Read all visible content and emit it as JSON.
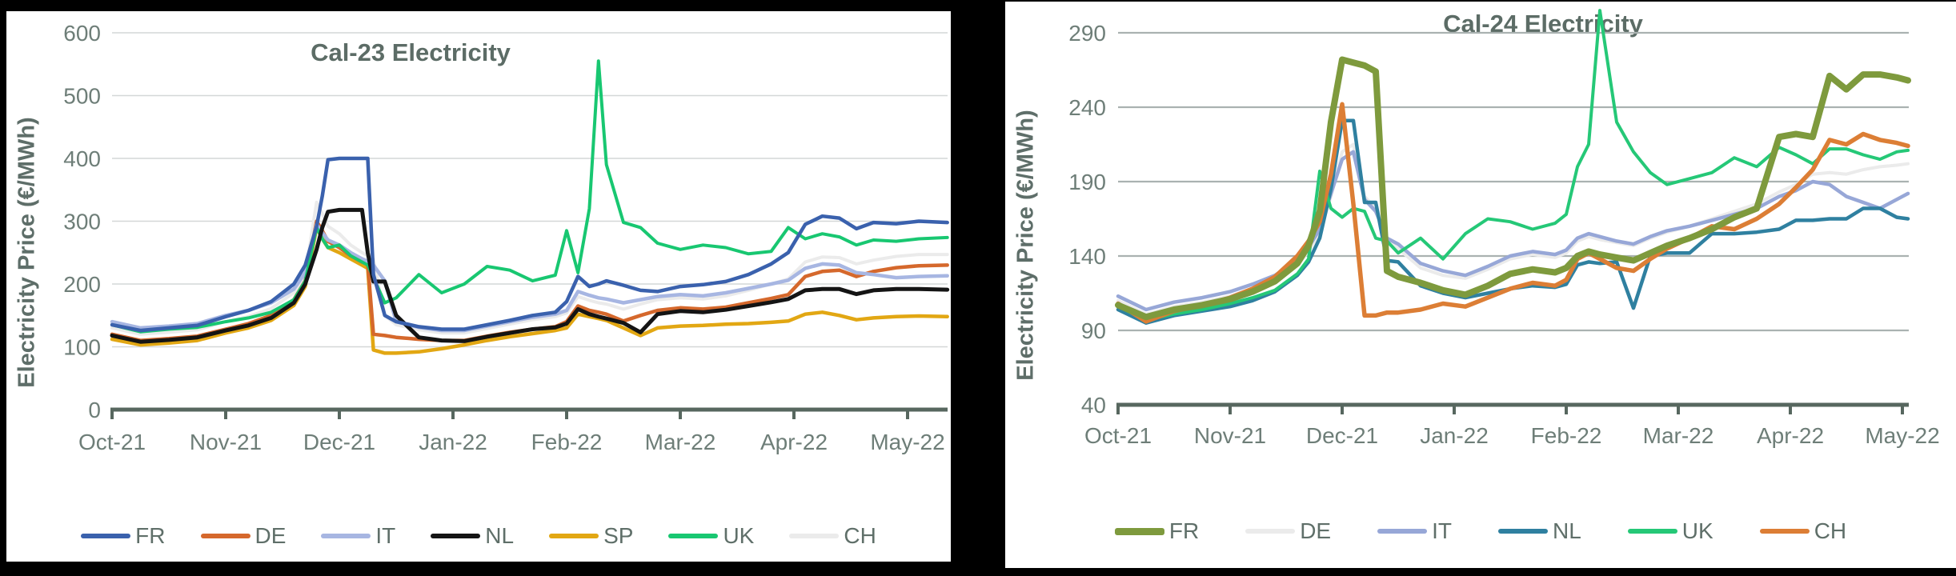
{
  "page": {
    "background_color": "#000000",
    "panel_color": "#ffffff"
  },
  "chart_data": [
    {
      "type": "line",
      "title": "Cal-23 Electricity",
      "xlabel": "",
      "ylabel": "Electricity Price (€/MWh)",
      "x_unit": "months since Oct-21",
      "x_tick_labels": [
        "Oct-21",
        "Nov-21",
        "Dec-21",
        "Jan-22",
        "Feb-22",
        "Mar-22",
        "Apr-22",
        "May-22"
      ],
      "ylim": [
        0,
        600
      ],
      "yticks": [
        0,
        100,
        200,
        300,
        400,
        500,
        600
      ],
      "grid": true,
      "legend_position": "bottom",
      "text_color": "#6e7e78",
      "grid_color": "#d4d7d7",
      "axis_color": "#57675f",
      "x": [
        0,
        0.25,
        0.5,
        0.75,
        1.0,
        1.2,
        1.4,
        1.6,
        1.7,
        1.8,
        1.85,
        1.9,
        2.0,
        2.1,
        2.2,
        2.25,
        2.3,
        2.4,
        2.5,
        2.7,
        2.9,
        3.1,
        3.3,
        3.5,
        3.7,
        3.9,
        4.0,
        4.1,
        4.2,
        4.28,
        4.35,
        4.5,
        4.65,
        4.8,
        5.0,
        5.2,
        5.4,
        5.6,
        5.8,
        5.95,
        6.1,
        6.25,
        6.4,
        6.55,
        6.7,
        6.9,
        7.1,
        7.35
      ],
      "series": [
        {
          "name": "CH",
          "color": "#ebebeb",
          "width": 4,
          "values": [
            130,
            120,
            123,
            127,
            140,
            148,
            161,
            186,
            216,
            330,
            312,
            292,
            280,
            262,
            250,
            245,
            240,
            150,
            135,
            127,
            122,
            122,
            129,
            136,
            143,
            148,
            154,
            180,
            174,
            170,
            168,
            160,
            168,
            175,
            178,
            176,
            181,
            190,
            200,
            208,
            235,
            243,
            242,
            232,
            238,
            244,
            247,
            247
          ]
        },
        {
          "name": "SP",
          "color": "#e2a713",
          "width": 4.5,
          "values": [
            112,
            103,
            106,
            110,
            122,
            130,
            142,
            166,
            196,
            290,
            272,
            258,
            250,
            240,
            230,
            225,
            95,
            90,
            90,
            92,
            97,
            103,
            110,
            116,
            121,
            126,
            130,
            152,
            148,
            145,
            142,
            130,
            118,
            130,
            133,
            134,
            136,
            137,
            139,
            141,
            152,
            155,
            150,
            143,
            146,
            148,
            149,
            148
          ]
        },
        {
          "name": "DE",
          "color": "#d5682c",
          "width": 4.5,
          "values": [
            120,
            110,
            113,
            117,
            128,
            137,
            150,
            175,
            205,
            300,
            285,
            268,
            258,
            245,
            235,
            232,
            120,
            118,
            115,
            112,
            110,
            110,
            117,
            123,
            128,
            132,
            140,
            165,
            158,
            155,
            152,
            141,
            150,
            158,
            162,
            160,
            163,
            170,
            177,
            183,
            212,
            220,
            222,
            212,
            220,
            226,
            229,
            230
          ]
        },
        {
          "name": "IT",
          "color": "#a7b6e2",
          "width": 4.5,
          "values": [
            140,
            130,
            133,
            137,
            150,
            158,
            170,
            192,
            218,
            295,
            282,
            270,
            262,
            250,
            240,
            236,
            230,
            205,
            140,
            131,
            126,
            126,
            133,
            140,
            147,
            152,
            158,
            188,
            182,
            178,
            176,
            170,
            175,
            180,
            183,
            181,
            186,
            193,
            200,
            206,
            225,
            232,
            230,
            218,
            215,
            210,
            212,
            213
          ]
        },
        {
          "name": "UK",
          "color": "#18c771",
          "width": 4,
          "values": [
            135,
            124,
            128,
            131,
            140,
            146,
            155,
            175,
            205,
            290,
            272,
            258,
            262,
            245,
            235,
            230,
            210,
            170,
            178,
            215,
            186,
            200,
            228,
            222,
            205,
            214,
            285,
            218,
            320,
            555,
            390,
            298,
            290,
            265,
            255,
            262,
            258,
            248,
            252,
            290,
            272,
            280,
            275,
            262,
            270,
            268,
            272,
            274
          ]
        },
        {
          "name": "NL",
          "color": "#141414",
          "width": 5,
          "values": [
            118,
            108,
            111,
            115,
            126,
            134,
            146,
            170,
            200,
            255,
            290,
            315,
            318,
            318,
            318,
            250,
            204,
            204,
            150,
            115,
            110,
            109,
            116,
            122,
            128,
            131,
            137,
            160,
            152,
            148,
            145,
            138,
            123,
            152,
            157,
            155,
            159,
            165,
            171,
            176,
            190,
            192,
            192,
            184,
            190,
            192,
            192,
            191
          ]
        },
        {
          "name": "FR",
          "color": "#3a61ad",
          "width": 4.5,
          "values": [
            135,
            126,
            130,
            134,
            148,
            158,
            172,
            200,
            230,
            292,
            340,
            398,
            400,
            400,
            400,
            400,
            215,
            150,
            140,
            132,
            128,
            128,
            135,
            142,
            150,
            155,
            172,
            212,
            196,
            200,
            205,
            198,
            190,
            188,
            196,
            199,
            204,
            215,
            232,
            250,
            295,
            308,
            305,
            288,
            298,
            296,
            300,
            298
          ]
        }
      ],
      "legend_order": [
        "FR",
        "DE",
        "IT",
        "NL",
        "SP",
        "UK",
        "CH"
      ]
    },
    {
      "type": "line",
      "title": "Cal-24 Electricity",
      "xlabel": "",
      "ylabel": "Electricity Price (€/MWh)",
      "x_unit": "months since Oct-21",
      "x_tick_labels": [
        "Oct-21",
        "Nov-21",
        "Dec-21",
        "Jan-22",
        "Feb-22",
        "Mar-22",
        "Apr-22",
        "May-22"
      ],
      "ylim": [
        40,
        290
      ],
      "yticks": [
        40,
        90,
        140,
        190,
        240,
        290
      ],
      "grid": true,
      "legend_position": "bottom",
      "text_color": "#6e7e78",
      "grid_color": "#aab2b1",
      "axis_color": "#57675f",
      "x": [
        0,
        0.25,
        0.5,
        0.75,
        1.0,
        1.2,
        1.4,
        1.6,
        1.7,
        1.8,
        1.9,
        2.0,
        2.1,
        2.2,
        2.3,
        2.4,
        2.5,
        2.7,
        2.9,
        3.1,
        3.3,
        3.5,
        3.7,
        3.9,
        4.0,
        4.1,
        4.2,
        4.3,
        4.45,
        4.6,
        4.75,
        4.9,
        5.1,
        5.3,
        5.5,
        5.7,
        5.9,
        6.05,
        6.2,
        6.35,
        6.5,
        6.65,
        6.8,
        6.95,
        7.05
      ],
      "series": [
        {
          "name": "DE",
          "color": "#ebebeb",
          "width": 4,
          "values": [
            110,
            101,
            106,
            109,
            113,
            118,
            124,
            134,
            143,
            156,
            180,
            210,
            215,
            180,
            172,
            150,
            145,
            132,
            127,
            125,
            131,
            138,
            141,
            139,
            142,
            150,
            153,
            151,
            149,
            147,
            152,
            156,
            160,
            165,
            170,
            175,
            183,
            188,
            195,
            196,
            195,
            198,
            200,
            201,
            202
          ]
        },
        {
          "name": "IT",
          "color": "#97a7d7",
          "width": 4.5,
          "values": [
            113,
            104,
            109,
            112,
            116,
            121,
            127,
            137,
            146,
            158,
            182,
            205,
            210,
            178,
            170,
            152,
            148,
            135,
            130,
            127,
            133,
            140,
            143,
            141,
            144,
            152,
            155,
            153,
            150,
            148,
            153,
            157,
            160,
            164,
            168,
            172,
            180,
            184,
            190,
            188,
            180,
            176,
            172,
            178,
            182
          ]
        },
        {
          "name": "NL",
          "color": "#2f80a0",
          "width": 4.5,
          "values": [
            104,
            95,
            100,
            103,
            106,
            110,
            116,
            127,
            136,
            152,
            185,
            231,
            231,
            176,
            176,
            137,
            136,
            120,
            115,
            112,
            115,
            118,
            120,
            119,
            121,
            134,
            136,
            135,
            136,
            105,
            140,
            142,
            142,
            155,
            155,
            156,
            158,
            164,
            164,
            165,
            165,
            172,
            172,
            166,
            165
          ]
        },
        {
          "name": "UK",
          "color": "#25c877",
          "width": 4,
          "values": [
            106,
            97,
            101,
            104,
            108,
            112,
            117,
            128,
            138,
            197,
            172,
            166,
            172,
            170,
            152,
            150,
            142,
            152,
            138,
            155,
            165,
            163,
            158,
            162,
            168,
            200,
            215,
            305,
            230,
            210,
            196,
            188,
            192,
            196,
            206,
            200,
            213,
            208,
            202,
            212,
            212,
            208,
            205,
            210,
            211
          ]
        },
        {
          "name": "CH",
          "color": "#dc7e35",
          "width": 5.5,
          "values": [
            108,
            96,
            103,
            107,
            112,
            118,
            126,
            140,
            150,
            163,
            195,
            242,
            175,
            100,
            100,
            102,
            102,
            104,
            108,
            106,
            112,
            118,
            122,
            120,
            124,
            138,
            142,
            138,
            132,
            130,
            138,
            145,
            152,
            160,
            158,
            165,
            175,
            186,
            198,
            218,
            215,
            222,
            218,
            216,
            214
          ]
        },
        {
          "name": "FR",
          "color": "#7e9a3d",
          "width": 8,
          "values": [
            107,
            99,
            104,
            107,
            111,
            116,
            123,
            135,
            147,
            170,
            230,
            272,
            270,
            268,
            264,
            130,
            126,
            122,
            117,
            114,
            120,
            128,
            131,
            129,
            132,
            140,
            143,
            141,
            139,
            137,
            142,
            147,
            152,
            158,
            166,
            172,
            220,
            222,
            220,
            261,
            252,
            262,
            262,
            260,
            258
          ]
        }
      ],
      "legend_order": [
        "FR",
        "DE",
        "IT",
        "NL",
        "UK",
        "CH"
      ]
    }
  ]
}
